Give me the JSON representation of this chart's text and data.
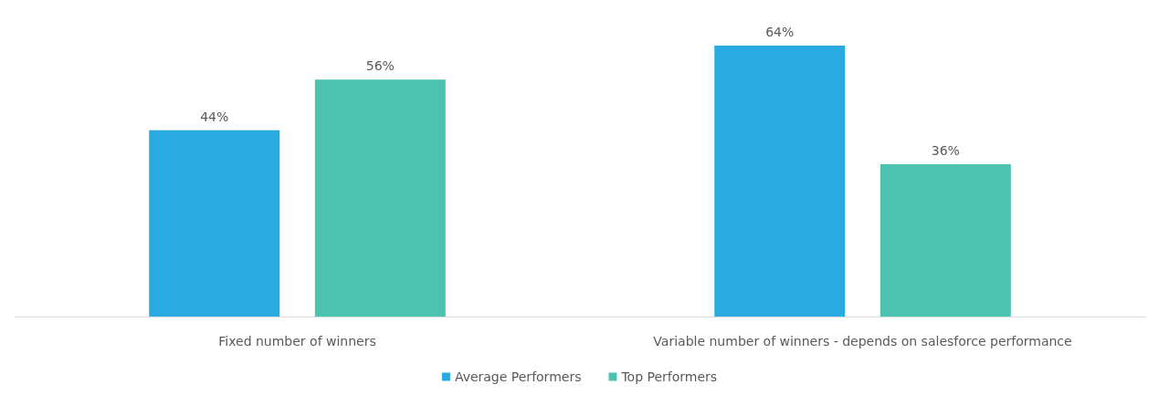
{
  "chart_data": {
    "type": "bar",
    "categories": [
      "Fixed number of winners",
      "Variable number of winners - depends on salesforce performance"
    ],
    "series": [
      {
        "name": "Average Performers",
        "color": "#29abe2",
        "values": [
          44,
          64
        ],
        "value_labels": [
          "44%",
          "64%"
        ]
      },
      {
        "name": "Top Performers",
        "color": "#4bc3b0",
        "values": [
          56,
          36
        ],
        "value_labels": [
          "56%",
          "36%"
        ]
      }
    ],
    "legend": "bottom"
  }
}
